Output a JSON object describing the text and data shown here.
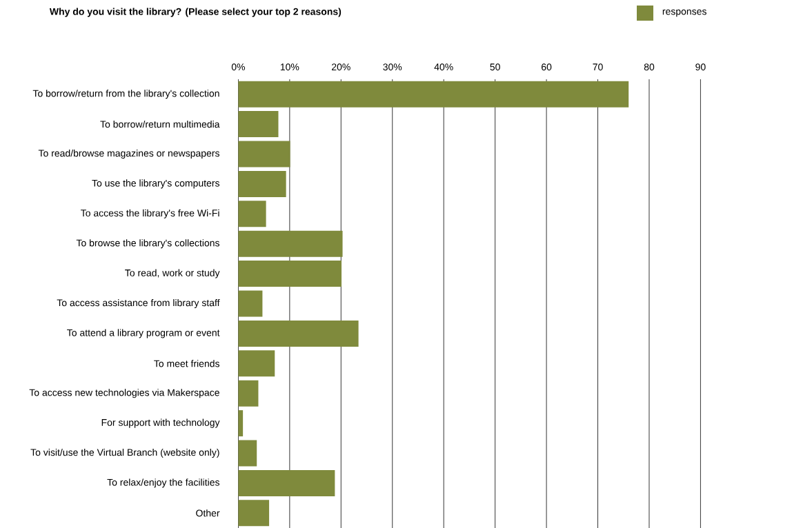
{
  "chart_data": {
    "type": "bar",
    "orientation": "horizontal",
    "title": "Why do you visit the library? (Please select your top 2 reasons)",
    "categories": [
      "To borrow/return from the library's collection",
      "To borrow/return multimedia",
      "To read/browse magazines or newspapers",
      "To use the library's computers",
      "To access the library's free Wi-Fi",
      "To browse the library's collections",
      "To read, work or study",
      "To access assistance from library staff",
      "To attend a library program or event",
      "To meet friends",
      "To access new technologies via Makerspace",
      "For support with technology",
      "To visit/use the Virtual Branch (website only)",
      "To relax/enjoy the facilities",
      "Other"
    ],
    "series": [
      {
        "name": "responses",
        "color": "#7f8a3c",
        "values": [
          76.0,
          7.8,
          10.1,
          9.3,
          5.4,
          20.3,
          20.1,
          4.7,
          23.4,
          7.1,
          3.9,
          0.9,
          3.6,
          18.8,
          6.0
        ]
      }
    ],
    "xlim": [
      0,
      90
    ],
    "xticks": [
      {
        "value": 0,
        "label": "0%"
      },
      {
        "value": 10,
        "label": "10%"
      },
      {
        "value": 20,
        "label": "20%"
      },
      {
        "value": 30,
        "label": "30%"
      },
      {
        "value": 40,
        "label": "40%"
      },
      50,
      60,
      70,
      80,
      90
    ],
    "grid": "x",
    "legend": "top right"
  }
}
